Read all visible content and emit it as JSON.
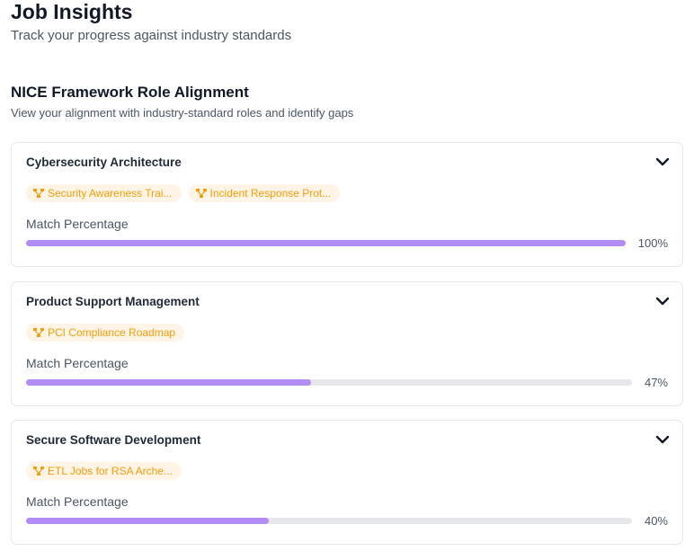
{
  "header": {
    "title": "Job Insights",
    "subtitle": "Track your progress against industry standards"
  },
  "section": {
    "title": "NICE Framework Role Alignment",
    "subtitle": "View your alignment with industry-standard roles and identify gaps"
  },
  "colors": {
    "accent": "#b18cf5",
    "tag_text": "#f59e0b",
    "tag_bg": "#fff4e5",
    "track": "#e5e7eb"
  },
  "roles": [
    {
      "title": "Cybersecurity Architecture",
      "tags": [
        "Security Awareness Trai...",
        "Incident Response Prot..."
      ],
      "match_label": "Match Percentage",
      "percent": 100,
      "percent_label": "100%"
    },
    {
      "title": "Product Support Management",
      "tags": [
        "PCI Compliance Roadmap"
      ],
      "match_label": "Match Percentage",
      "percent": 47,
      "percent_label": "47%"
    },
    {
      "title": "Secure Software Development",
      "tags": [
        "ETL Jobs for RSA Arche..."
      ],
      "match_label": "Match Percentage",
      "percent": 40,
      "percent_label": "40%"
    }
  ]
}
